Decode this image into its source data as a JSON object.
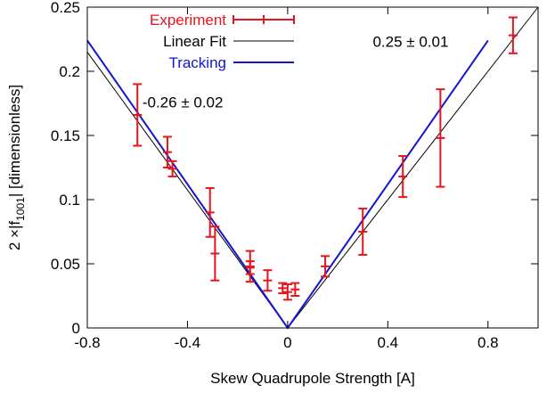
{
  "chart_data": {
    "type": "scatter",
    "xlabel": "Skew Quadrupole Strength [A]",
    "ylabel": "2 ×|f1001| [dimensionless]",
    "ylabel_parts": {
      "pre": "2 ×|f",
      "sub": "1001",
      "post": "| [dimensionless]"
    },
    "xlim": [
      -0.8,
      1.0
    ],
    "ylim": [
      0,
      0.25
    ],
    "x_ticks": [
      -0.8,
      -0.4,
      0,
      0.4,
      0.8
    ],
    "x_tick_labels": [
      "-0.8",
      "-0.4",
      "0",
      "0.4",
      "0.8"
    ],
    "y_ticks": [
      0,
      0.05,
      0.1,
      0.15,
      0.2,
      0.25
    ],
    "y_tick_labels": [
      "0",
      "0.05",
      "0.1",
      "0.15",
      "0.2",
      "0.25"
    ],
    "grid": false,
    "legend_position": "top-left",
    "series": [
      {
        "name": "Experiment",
        "kind": "errorbar",
        "color": "#e8141e",
        "points": [
          {
            "x": -0.6,
            "y": 0.166,
            "err": 0.024
          },
          {
            "x": -0.48,
            "y": 0.137,
            "err": 0.012
          },
          {
            "x": -0.46,
            "y": 0.124,
            "err": 0.006
          },
          {
            "x": -0.31,
            "y": 0.09,
            "err": 0.019
          },
          {
            "x": -0.29,
            "y": 0.058,
            "err": 0.021
          },
          {
            "x": -0.15,
            "y": 0.048,
            "err": 0.012
          },
          {
            "x": -0.15,
            "y": 0.047,
            "err": 0.005
          },
          {
            "x": -0.08,
            "y": 0.037,
            "err": 0.008
          },
          {
            "x": -0.02,
            "y": 0.031,
            "err": 0.004
          },
          {
            "x": 0.0,
            "y": 0.028,
            "err": 0.006
          },
          {
            "x": 0.03,
            "y": 0.03,
            "err": 0.005
          },
          {
            "x": 0.15,
            "y": 0.048,
            "err": 0.008
          },
          {
            "x": 0.3,
            "y": 0.075,
            "err": 0.018
          },
          {
            "x": 0.46,
            "y": 0.118,
            "err": 0.016
          },
          {
            "x": 0.61,
            "y": 0.148,
            "err": 0.038
          },
          {
            "x": 0.9,
            "y": 0.228,
            "err": 0.014
          }
        ]
      },
      {
        "name": "Linear Fit",
        "kind": "line",
        "color": "#000000",
        "points": [
          [
            -0.8,
            0.215
          ],
          [
            0,
            0
          ],
          [
            1.0,
            0.25
          ]
        ]
      },
      {
        "name": "Tracking",
        "kind": "line",
        "color": "#1414d2",
        "points": [
          [
            -0.8,
            0.224
          ],
          [
            0,
            0
          ],
          [
            0.8,
            0.224
          ]
        ]
      }
    ],
    "annotations": [
      {
        "text": "-0.26 ± 0.02",
        "x": -0.58,
        "y": 0.172
      },
      {
        "text": "0.25  ± 0.01",
        "x": 0.34,
        "y": 0.219
      }
    ]
  }
}
